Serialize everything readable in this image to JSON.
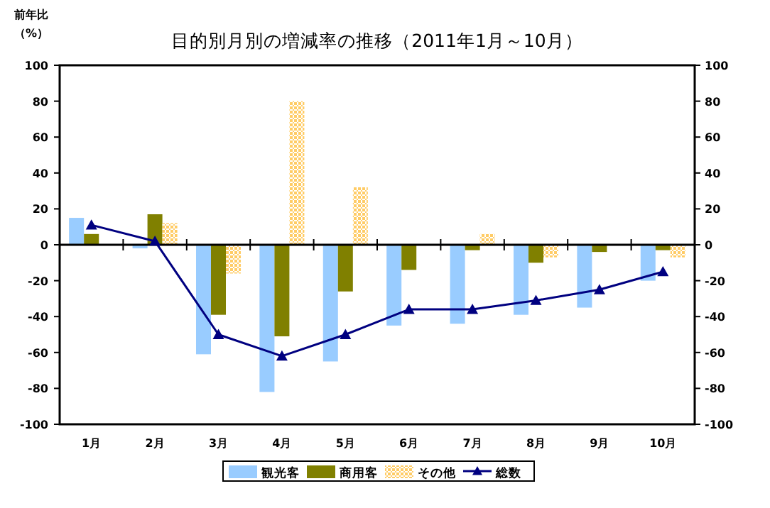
{
  "chart_data": {
    "type": "bar",
    "title": "目的別月別の増減率の推移（2011年1月～10月）",
    "ylabel": "前年比（%）",
    "categories": [
      "1月",
      "2月",
      "3月",
      "4月",
      "5月",
      "6月",
      "7月",
      "8月",
      "9月",
      "10月"
    ],
    "series": [
      {
        "name": "観光客",
        "type": "bar",
        "color": "#99ccff",
        "values": [
          15,
          -2,
          -61,
          -82,
          -65,
          -45,
          -44,
          -39,
          -35,
          -20
        ]
      },
      {
        "name": "商用客",
        "type": "bar",
        "color": "#808000",
        "values": [
          6,
          17,
          -39,
          -51,
          -26,
          -14,
          -3,
          -10,
          -4,
          -3
        ]
      },
      {
        "name": "その他",
        "type": "bar",
        "color": "#ffcc66",
        "values": [
          null,
          12,
          -16,
          80,
          32,
          null,
          6,
          -7,
          null,
          -7
        ]
      },
      {
        "name": "総数",
        "type": "line",
        "color": "#000080",
        "marker": "triangle",
        "line_style": "solid",
        "values": [
          11,
          2,
          -50,
          -62,
          -50,
          -36,
          -36,
          -31,
          -25,
          -15
        ]
      }
    ],
    "ylim": [
      -100,
      100
    ],
    "yticks": [
      -100,
      -80,
      -60,
      -40,
      -20,
      0,
      20,
      40,
      60,
      80,
      100
    ],
    "y2lim": [
      -100,
      100
    ],
    "y2ticks": [
      -100,
      -80,
      -60,
      -40,
      -20,
      0,
      20,
      40,
      60,
      80,
      100
    ],
    "legend": "bottom"
  }
}
